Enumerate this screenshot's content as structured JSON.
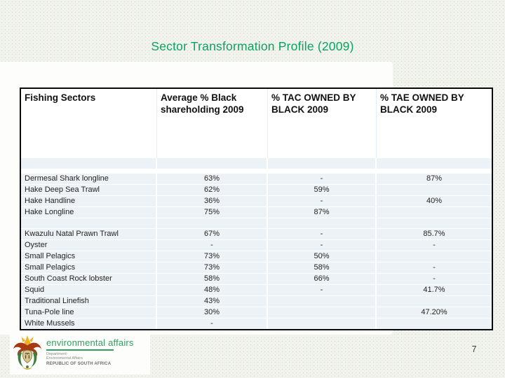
{
  "slide": {
    "title": "Sector Transformation Profile (2009)",
    "page_number": "7",
    "accent_green": "#0aa25e",
    "row_tint": "#edf2f7"
  },
  "table": {
    "columns": [
      "Fishing Sectors",
      "Average % Black shareholding 2009",
      "% TAC OWNED BY BLACK 2009",
      "% TAE OWNED BY BLACK 2009"
    ],
    "rows": [
      {
        "kind": "blank"
      },
      {
        "kind": "gap"
      },
      {
        "kind": "data",
        "sector": "Dermesal Shark longline",
        "share": "63%",
        "tac": "-",
        "tae": "87%"
      },
      {
        "kind": "data",
        "sector": "Hake Deep Sea Trawl",
        "share": "62%",
        "tac": "59%",
        "tae": ""
      },
      {
        "kind": "data",
        "sector": "Hake Handline",
        "share": "36%",
        "tac": "-",
        "tae": "40%"
      },
      {
        "kind": "data",
        "sector": "Hake Longline",
        "share": "75%",
        "tac": "87%",
        "tae": ""
      },
      {
        "kind": "blank2"
      },
      {
        "kind": "data",
        "sector": "Kwazulu Natal Prawn Trawl",
        "share": "67%",
        "tac": "-",
        "tae": "85.7%"
      },
      {
        "kind": "data",
        "sector": "Oyster",
        "share": "-",
        "tac": "-",
        "tae": "-"
      },
      {
        "kind": "data",
        "sector": "Small Pelagics",
        "share": "73%",
        "tac": "50%",
        "tae": ""
      },
      {
        "kind": "data",
        "sector": "Small Pelagics",
        "share": "73%",
        "tac": "58%",
        "tae": "-"
      },
      {
        "kind": "data",
        "sector": "South Coast Rock lobster",
        "share": "58%",
        "tac": "66%",
        "tae": "-"
      },
      {
        "kind": "data",
        "sector": "Squid",
        "share": "48%",
        "tac": "-",
        "tae": "41.7%"
      },
      {
        "kind": "data",
        "sector": "Traditional Linefish",
        "share": "43%",
        "tac": "",
        "tae": ""
      },
      {
        "kind": "data",
        "sector": "Tuna-Pole line",
        "share": "30%",
        "tac": "",
        "tae": "47.20%"
      },
      {
        "kind": "data",
        "sector": "White Mussels",
        "share": "-",
        "tac": "",
        "tae": ""
      }
    ]
  },
  "footer_logo": {
    "org": "environmental affairs",
    "dept_label": "Department:",
    "dept_name": "Environmental Affairs",
    "country": "REPUBLIC OF SOUTH AFRICA"
  }
}
